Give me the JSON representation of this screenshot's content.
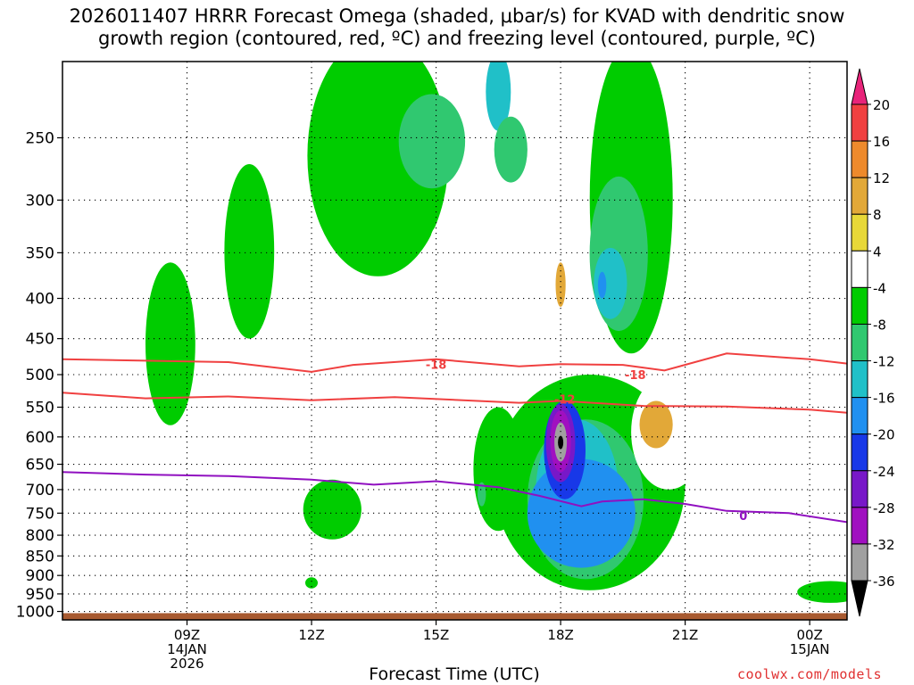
{
  "title_lines": [
    "2026011407 HRRR Forecast Omega (shaded, μbar/s) for KVAD with dendritic snow",
    "growth region (contoured, red, ºC) and freezing level (contoured, purple, ºC)"
  ],
  "credit": "coolwx.com/models",
  "chart_data": {
    "type": "heatmap",
    "title": "2026011407 HRRR Forecast Omega (shaded, μbar/s) for KVAD with dendritic snow growth region (contoured, red, ºC) and freezing level (contoured, purple, ºC)",
    "xlabel": "Forecast Time (UTC)",
    "ylabel": "",
    "x_range_hours": [
      6,
      24.9
    ],
    "y_range_hpa": [
      200,
      1025
    ],
    "y_scale": "log-pressure",
    "yticks": [
      250,
      300,
      350,
      400,
      450,
      500,
      550,
      600,
      650,
      700,
      750,
      800,
      850,
      900,
      950,
      1000
    ],
    "xticks": [
      {
        "hour": 9,
        "lines": [
          "09Z",
          "14JAN",
          "2026"
        ]
      },
      {
        "hour": 12,
        "lines": [
          "12Z"
        ]
      },
      {
        "hour": 15,
        "lines": [
          "15Z"
        ]
      },
      {
        "hour": 18,
        "lines": [
          "18Z"
        ]
      },
      {
        "hour": 21,
        "lines": [
          "21Z"
        ]
      },
      {
        "hour": 24,
        "lines": [
          "00Z",
          "15JAN"
        ]
      }
    ],
    "colorbar": {
      "labels": [
        "20",
        "16",
        "12",
        "8",
        "4",
        "-4",
        "-8",
        "-12",
        "-16",
        "-20",
        "-24",
        "-28",
        "-32",
        "-36"
      ],
      "bins": [
        {
          "lo": 20,
          "hi": null,
          "color": "#e8247a",
          "shape": "triangle"
        },
        {
          "lo": 16,
          "hi": 20,
          "color": "#f04040"
        },
        {
          "lo": 12,
          "hi": 16,
          "color": "#ee8a2c"
        },
        {
          "lo": 8,
          "hi": 12,
          "color": "#e2a838"
        },
        {
          "lo": 4,
          "hi": 8,
          "color": "#e8d838"
        },
        {
          "lo": -4,
          "hi": 4,
          "color": "#ffffff"
        },
        {
          "lo": -8,
          "hi": -4,
          "color": "#00cc00"
        },
        {
          "lo": -12,
          "hi": -8,
          "color": "#30c870"
        },
        {
          "lo": -16,
          "hi": -12,
          "color": "#20c0c8"
        },
        {
          "lo": -20,
          "hi": -16,
          "color": "#2090f0"
        },
        {
          "lo": -24,
          "hi": -20,
          "color": "#1838e8"
        },
        {
          "lo": -28,
          "hi": -24,
          "color": "#7818c8"
        },
        {
          "lo": -32,
          "hi": -28,
          "color": "#a010c0"
        },
        {
          "lo": -36,
          "hi": -32,
          "color": "#a0a0a0"
        },
        {
          "lo": null,
          "hi": -36,
          "color": "#000000",
          "shape": "triangle"
        }
      ]
    },
    "omega_regions": [
      {
        "level": -4,
        "center": [
          13.6,
          280
        ],
        "hw": 1.7,
        "hh": 95
      },
      {
        "level": -8,
        "center": [
          14.9,
          255
        ],
        "hw": 0.8,
        "hh": 35
      },
      {
        "level": -12,
        "center": [
          16.5,
          220
        ],
        "hw": 0.3,
        "hh": 25
      },
      {
        "level": -8,
        "center": [
          16.8,
          260
        ],
        "hw": 0.4,
        "hh": 25
      },
      {
        "level": -4,
        "center": [
          19.7,
          330
        ],
        "hw": 1.0,
        "hh": 140
      },
      {
        "level": -8,
        "center": [
          19.4,
          360
        ],
        "hw": 0.7,
        "hh": 80
      },
      {
        "level": -12,
        "center": [
          19.2,
          385
        ],
        "hw": 0.4,
        "hh": 40
      },
      {
        "level": -16,
        "center": [
          19.0,
          385
        ],
        "hw": 0.1,
        "hh": 15
      },
      {
        "level": -4,
        "center": [
          10.5,
          360
        ],
        "hw": 0.6,
        "hh": 90
      },
      {
        "level": -4,
        "center": [
          8.6,
          470
        ],
        "hw": 0.6,
        "hh": 110
      },
      {
        "level": -4,
        "center": [
          12.5,
          745
        ],
        "hw": 0.7,
        "hh": 65
      },
      {
        "level": -4,
        "center": [
          12.0,
          920
        ],
        "hw": 0.15,
        "hh": 15
      },
      {
        "level": -4,
        "center": [
          16.5,
          670
        ],
        "hw": 0.6,
        "hh": 120
      },
      {
        "level": -8,
        "center": [
          16.1,
          710
        ],
        "hw": 0.1,
        "hh": 25
      },
      {
        "level": -4,
        "center": [
          24.5,
          945
        ],
        "hw": 0.8,
        "hh": 30
      },
      {
        "level": -4,
        "center": [
          18.7,
          720
        ],
        "hw": 2.3,
        "hh": 220
      },
      {
        "level": -8,
        "center": [
          18.6,
          740
        ],
        "hw": 1.4,
        "hh": 170
      },
      {
        "level": -12,
        "center": [
          18.4,
          720
        ],
        "hw": 1.0,
        "hh": 150
      },
      {
        "level": -16,
        "center": [
          18.5,
          760
        ],
        "hw": 1.3,
        "hh": 120
      },
      {
        "level": -20,
        "center": [
          18.1,
          630
        ],
        "hw": 0.5,
        "hh": 90
      },
      {
        "level": -24,
        "center": [
          18.0,
          615
        ],
        "hw": 0.35,
        "hh": 70
      },
      {
        "level": -28,
        "center": [
          18.0,
          610
        ],
        "hw": 0.25,
        "hh": 55
      },
      {
        "level": -32,
        "center": [
          18.0,
          610
        ],
        "hw": 0.15,
        "hh": 35
      },
      {
        "level": -36,
        "center": [
          18.0,
          610
        ],
        "hw": 0.05,
        "hh": 12
      },
      {
        "level": 4,
        "center": [
          24.8,
          290
        ],
        "hw": 0.6,
        "hh": 45
      },
      {
        "level": 4,
        "center": [
          15.0,
          390
        ],
        "hw": 0.25,
        "hh": 65
      },
      {
        "level": 4,
        "center": [
          17.9,
          395
        ],
        "hw": 0.8,
        "hh": 65
      },
      {
        "level": 8,
        "center": [
          18.0,
          385
        ],
        "hw": 0.12,
        "hh": 25
      },
      {
        "level": 4,
        "center": [
          13.6,
          580
        ],
        "hw": 0.9,
        "hh": 80
      },
      {
        "level": 4,
        "center": [
          20.6,
          600
        ],
        "hw": 0.9,
        "hh": 100
      },
      {
        "level": 8,
        "center": [
          20.3,
          580
        ],
        "hw": 0.4,
        "hh": 40
      },
      {
        "level": 4,
        "center": [
          10.0,
          715
        ],
        "hw": 0.5,
        "hh": 45
      },
      {
        "level": 4,
        "center": [
          13.0,
          840
        ],
        "hw": 0.25,
        "hh": 35
      },
      {
        "level": 4,
        "center": [
          15.0,
          820
        ],
        "hw": 0.1,
        "hh": 15
      }
    ],
    "temperature_contours": [
      {
        "label": "-18",
        "color": "#f04040",
        "label_points": [
          [
            15.0,
            485
          ],
          [
            19.8,
            500
          ]
        ],
        "points": [
          [
            6,
            478
          ],
          [
            8,
            480
          ],
          [
            10,
            482
          ],
          [
            12,
            496
          ],
          [
            13,
            486
          ],
          [
            15,
            478
          ],
          [
            17,
            488
          ],
          [
            18,
            485
          ],
          [
            19.5,
            486
          ],
          [
            20.5,
            494
          ],
          [
            22,
            470
          ],
          [
            24,
            478
          ],
          [
            24.9,
            484
          ]
        ]
      },
      {
        "label": "-12",
        "color": "#f04040",
        "label_points": [
          [
            18.1,
            537
          ]
        ],
        "points": [
          [
            6,
            527
          ],
          [
            8,
            536
          ],
          [
            10,
            533
          ],
          [
            12,
            539
          ],
          [
            14,
            534
          ],
          [
            16,
            540
          ],
          [
            17,
            543
          ],
          [
            18,
            540
          ],
          [
            20,
            548
          ],
          [
            22,
            549
          ],
          [
            24,
            554
          ],
          [
            24.9,
            559
          ]
        ]
      },
      {
        "label": "0",
        "color": "#9010c0",
        "label_points": [
          [
            22.4,
            755
          ]
        ],
        "points": [
          [
            6,
            665
          ],
          [
            8,
            670
          ],
          [
            10,
            673
          ],
          [
            12,
            680
          ],
          [
            13.5,
            690
          ],
          [
            15,
            683
          ],
          [
            16.5,
            695
          ],
          [
            17.5,
            713
          ],
          [
            18.5,
            735
          ],
          [
            19,
            725
          ],
          [
            20,
            720
          ],
          [
            21,
            730
          ],
          [
            22,
            745
          ],
          [
            23.5,
            750
          ],
          [
            24.9,
            770
          ]
        ]
      }
    ],
    "terrain": {
      "color": "#a85a30",
      "top_hpa": 1005
    }
  },
  "colors": {
    "frame": "#000000",
    "grid": "#000000",
    "ground": "#a85a30",
    "credit": "#e03030"
  }
}
